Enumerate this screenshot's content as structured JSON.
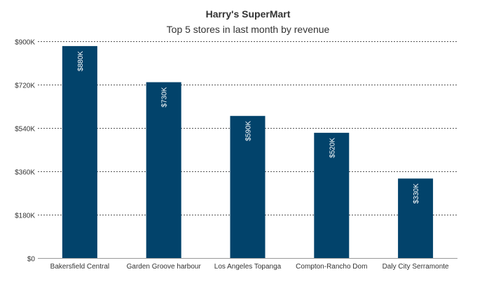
{
  "chart_data": {
    "type": "bar",
    "title": "Harry's SuperMart",
    "subtitle": "Top 5 stores in last month by revenue",
    "xlabel": "",
    "ylabel": "",
    "categories": [
      "Bakersfield Central",
      "Garden Groove harbour",
      "Los Angeles Topanga",
      "Compton-Rancho Dom",
      "Daly City Serramonte"
    ],
    "values": [
      880000,
      730000,
      590000,
      520000,
      330000
    ],
    "data_labels": [
      "$880K",
      "$730K",
      "$590K",
      "$520K",
      "$330K"
    ],
    "ylim": [
      0,
      900000
    ],
    "yticks": [
      0,
      180000,
      360000,
      540000,
      720000,
      900000
    ],
    "ytick_labels": [
      "$0",
      "$180K",
      "$360K",
      "$540K",
      "$720K",
      "$900K"
    ],
    "grid": true,
    "grid_style": "dotted",
    "bar_color": "#02436b",
    "label_color": "#ffffff"
  }
}
